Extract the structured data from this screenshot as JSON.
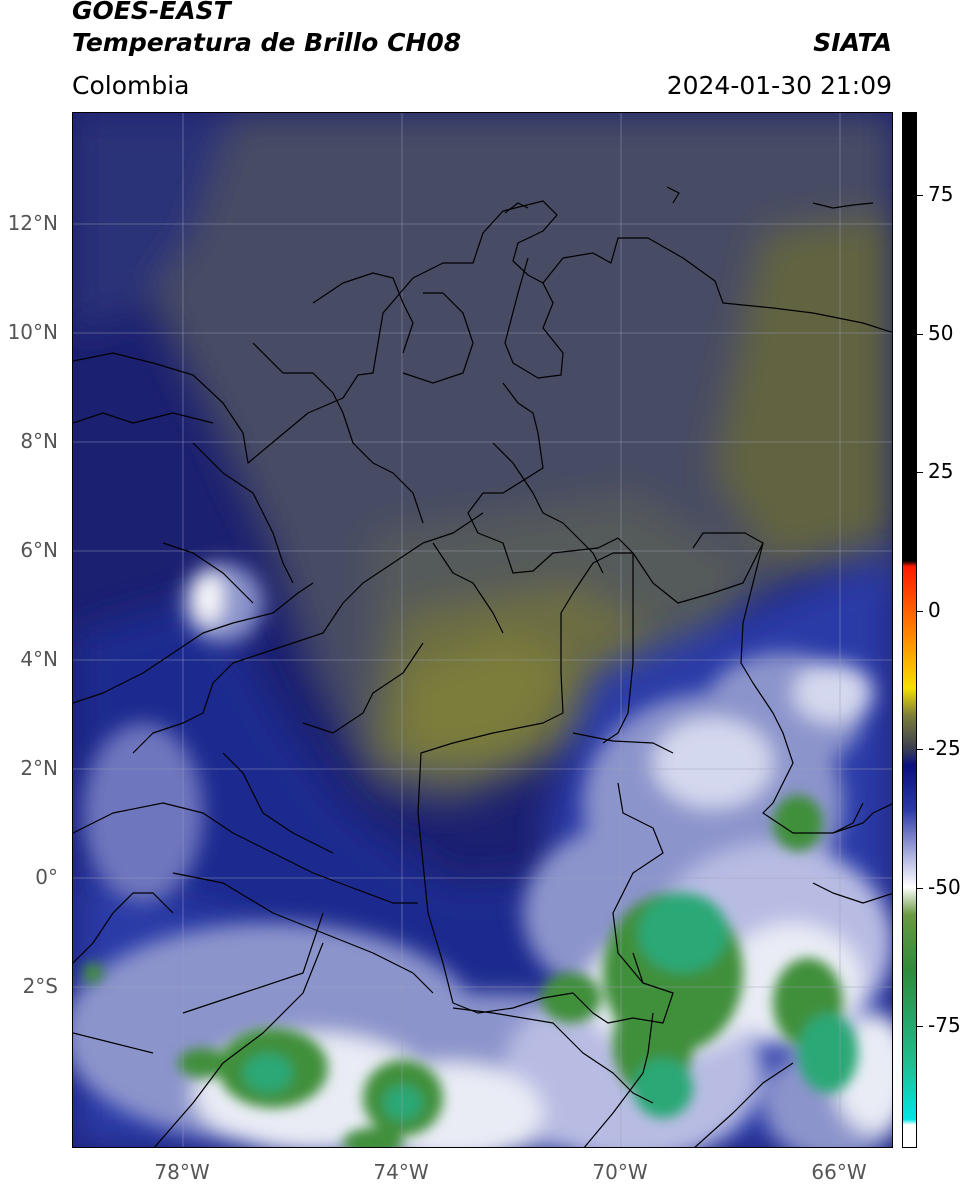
{
  "header": {
    "satellite": "GOES-EAST",
    "product": "Temperatura de Brillo CH08",
    "region": "Colombia",
    "brand": "SIATA",
    "timestamp": "2024-01-30 21:09"
  },
  "map": {
    "lat_labels": [
      "12°N",
      "10°N",
      "8°N",
      "6°N",
      "4°N",
      "2°N",
      "0°",
      "2°S"
    ],
    "lon_labels": [
      "78°W",
      "74°W",
      "70°W",
      "66°W"
    ],
    "lon_range": [
      -80,
      -65
    ],
    "lat_range": [
      -5,
      14
    ],
    "colors": {
      "very_cold_cloud": "#2aa876",
      "cold_cloud_green": "#3f8f3a",
      "cloud_white": "#e9ecf5",
      "cloud_light_blue": "#8c94cc",
      "mid_blue": "#1f2a8f",
      "dark_navy": "#1c2070",
      "dry_slate": "#474c63",
      "dry_olive": "#7c7d3a"
    }
  },
  "colorbar": {
    "ticks": [
      "75",
      "50",
      "25",
      "0",
      "-25",
      "-50",
      "-75"
    ],
    "tick_values": [
      75,
      50,
      25,
      0,
      -25,
      -50,
      -75
    ],
    "range": [
      -97,
      90
    ],
    "stops": [
      {
        "value": 90,
        "color": "#000000"
      },
      {
        "value": 9,
        "color": "#000000"
      },
      {
        "value": 8,
        "color": "#ff1a00"
      },
      {
        "value": -5,
        "color": "#ff8c00"
      },
      {
        "value": -14,
        "color": "#f5e100"
      },
      {
        "value": -19,
        "color": "#7c7d3a"
      },
      {
        "value": -25,
        "color": "#3b3e52"
      },
      {
        "value": -28,
        "color": "#0b1080"
      },
      {
        "value": -36,
        "color": "#2c3aa8"
      },
      {
        "value": -45,
        "color": "#b8bce3"
      },
      {
        "value": -50,
        "color": "#ffffff"
      },
      {
        "value": -55,
        "color": "#6a9a42"
      },
      {
        "value": -65,
        "color": "#2e8b3b"
      },
      {
        "value": -82,
        "color": "#1fbf90"
      },
      {
        "value": -92,
        "color": "#00e5e5"
      },
      {
        "value": -93,
        "color": "#ffffff"
      },
      {
        "value": -97,
        "color": "#ffffff"
      }
    ]
  }
}
